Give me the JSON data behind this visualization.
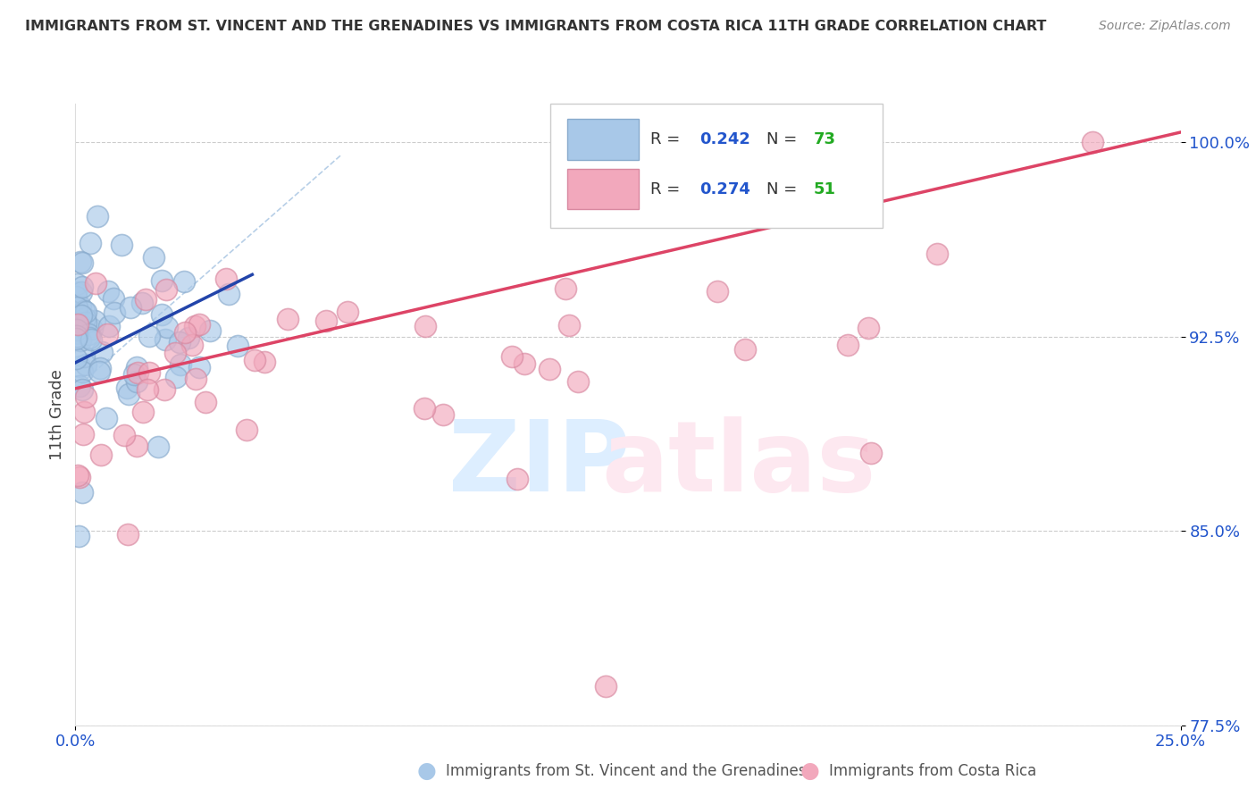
{
  "title": "IMMIGRANTS FROM ST. VINCENT AND THE GRENADINES VS IMMIGRANTS FROM COSTA RICA 11TH GRADE CORRELATION CHART",
  "source": "Source: ZipAtlas.com",
  "ylabel": "11th Grade",
  "xlim": [
    0.0,
    25.0
  ],
  "ylim": [
    77.5,
    101.5
  ],
  "blue_R": 0.242,
  "blue_N": 73,
  "pink_R": 0.274,
  "pink_N": 51,
  "blue_color": "#a8c8e8",
  "pink_color": "#f2a8bc",
  "blue_edge": "#88aacc",
  "pink_edge": "#d888a0",
  "blue_line_color": "#2244aa",
  "pink_line_color": "#dd4466",
  "legend_R_color": "#2255cc",
  "legend_N_color": "#22aa22",
  "tick_color": "#2255cc",
  "background_color": "#ffffff",
  "grid_color": "#cccccc",
  "title_color": "#333333",
  "source_color": "#888888",
  "watermark_zip_color": "#ddeeff",
  "watermark_atlas_color": "#fde8f0"
}
